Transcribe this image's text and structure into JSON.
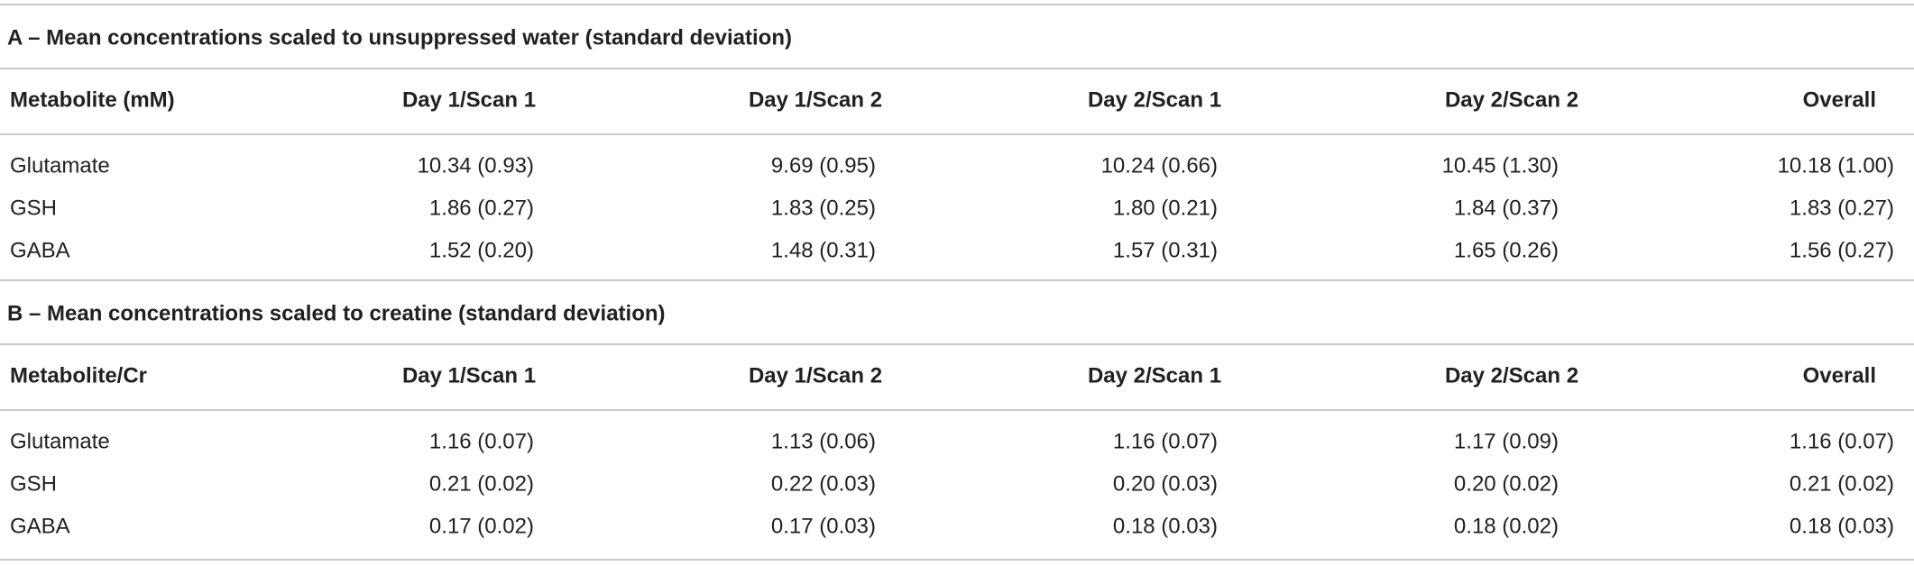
{
  "sections": [
    {
      "title": "A – Mean concentrations scaled to unsuppressed water (standard deviation)",
      "header": [
        "Metabolite (mM)",
        "Day 1/Scan 1",
        "Day 1/Scan 2",
        "Day 2/Scan 1",
        "Day 2/Scan 2",
        "Overall"
      ],
      "rows": [
        [
          "Glutamate",
          "10.34 (0.93)",
          "9.69 (0.95)",
          "10.24 (0.66)",
          "10.45 (1.30)",
          "10.18 (1.00)"
        ],
        [
          "GSH",
          "1.86 (0.27)",
          "1.83 (0.25)",
          "1.80 (0.21)",
          "1.84 (0.37)",
          "1.83 (0.27)"
        ],
        [
          "GABA",
          "1.52 (0.20)",
          "1.48 (0.31)",
          "1.57 (0.31)",
          "1.65 (0.26)",
          "1.56 (0.27)"
        ]
      ]
    },
    {
      "title": "B – Mean concentrations scaled to creatine (standard deviation)",
      "header": [
        "Metabolite/Cr",
        "Day 1/Scan 1",
        "Day 1/Scan 2",
        "Day 2/Scan 1",
        "Day 2/Scan 2",
        "Overall"
      ],
      "rows": [
        [
          "Glutamate",
          "1.16 (0.07)",
          "1.13 (0.06)",
          "1.16 (0.07)",
          "1.17 (0.09)",
          "1.16 (0.07)"
        ],
        [
          "GSH",
          "0.21 (0.02)",
          "0.22 (0.03)",
          "0.20 (0.03)",
          "0.20 (0.02)",
          "0.21 (0.02)"
        ],
        [
          "GABA",
          "0.17 (0.02)",
          "0.17 (0.03)",
          "0.18 (0.03)",
          "0.18 (0.02)",
          "0.18 (0.03)"
        ]
      ]
    }
  ]
}
